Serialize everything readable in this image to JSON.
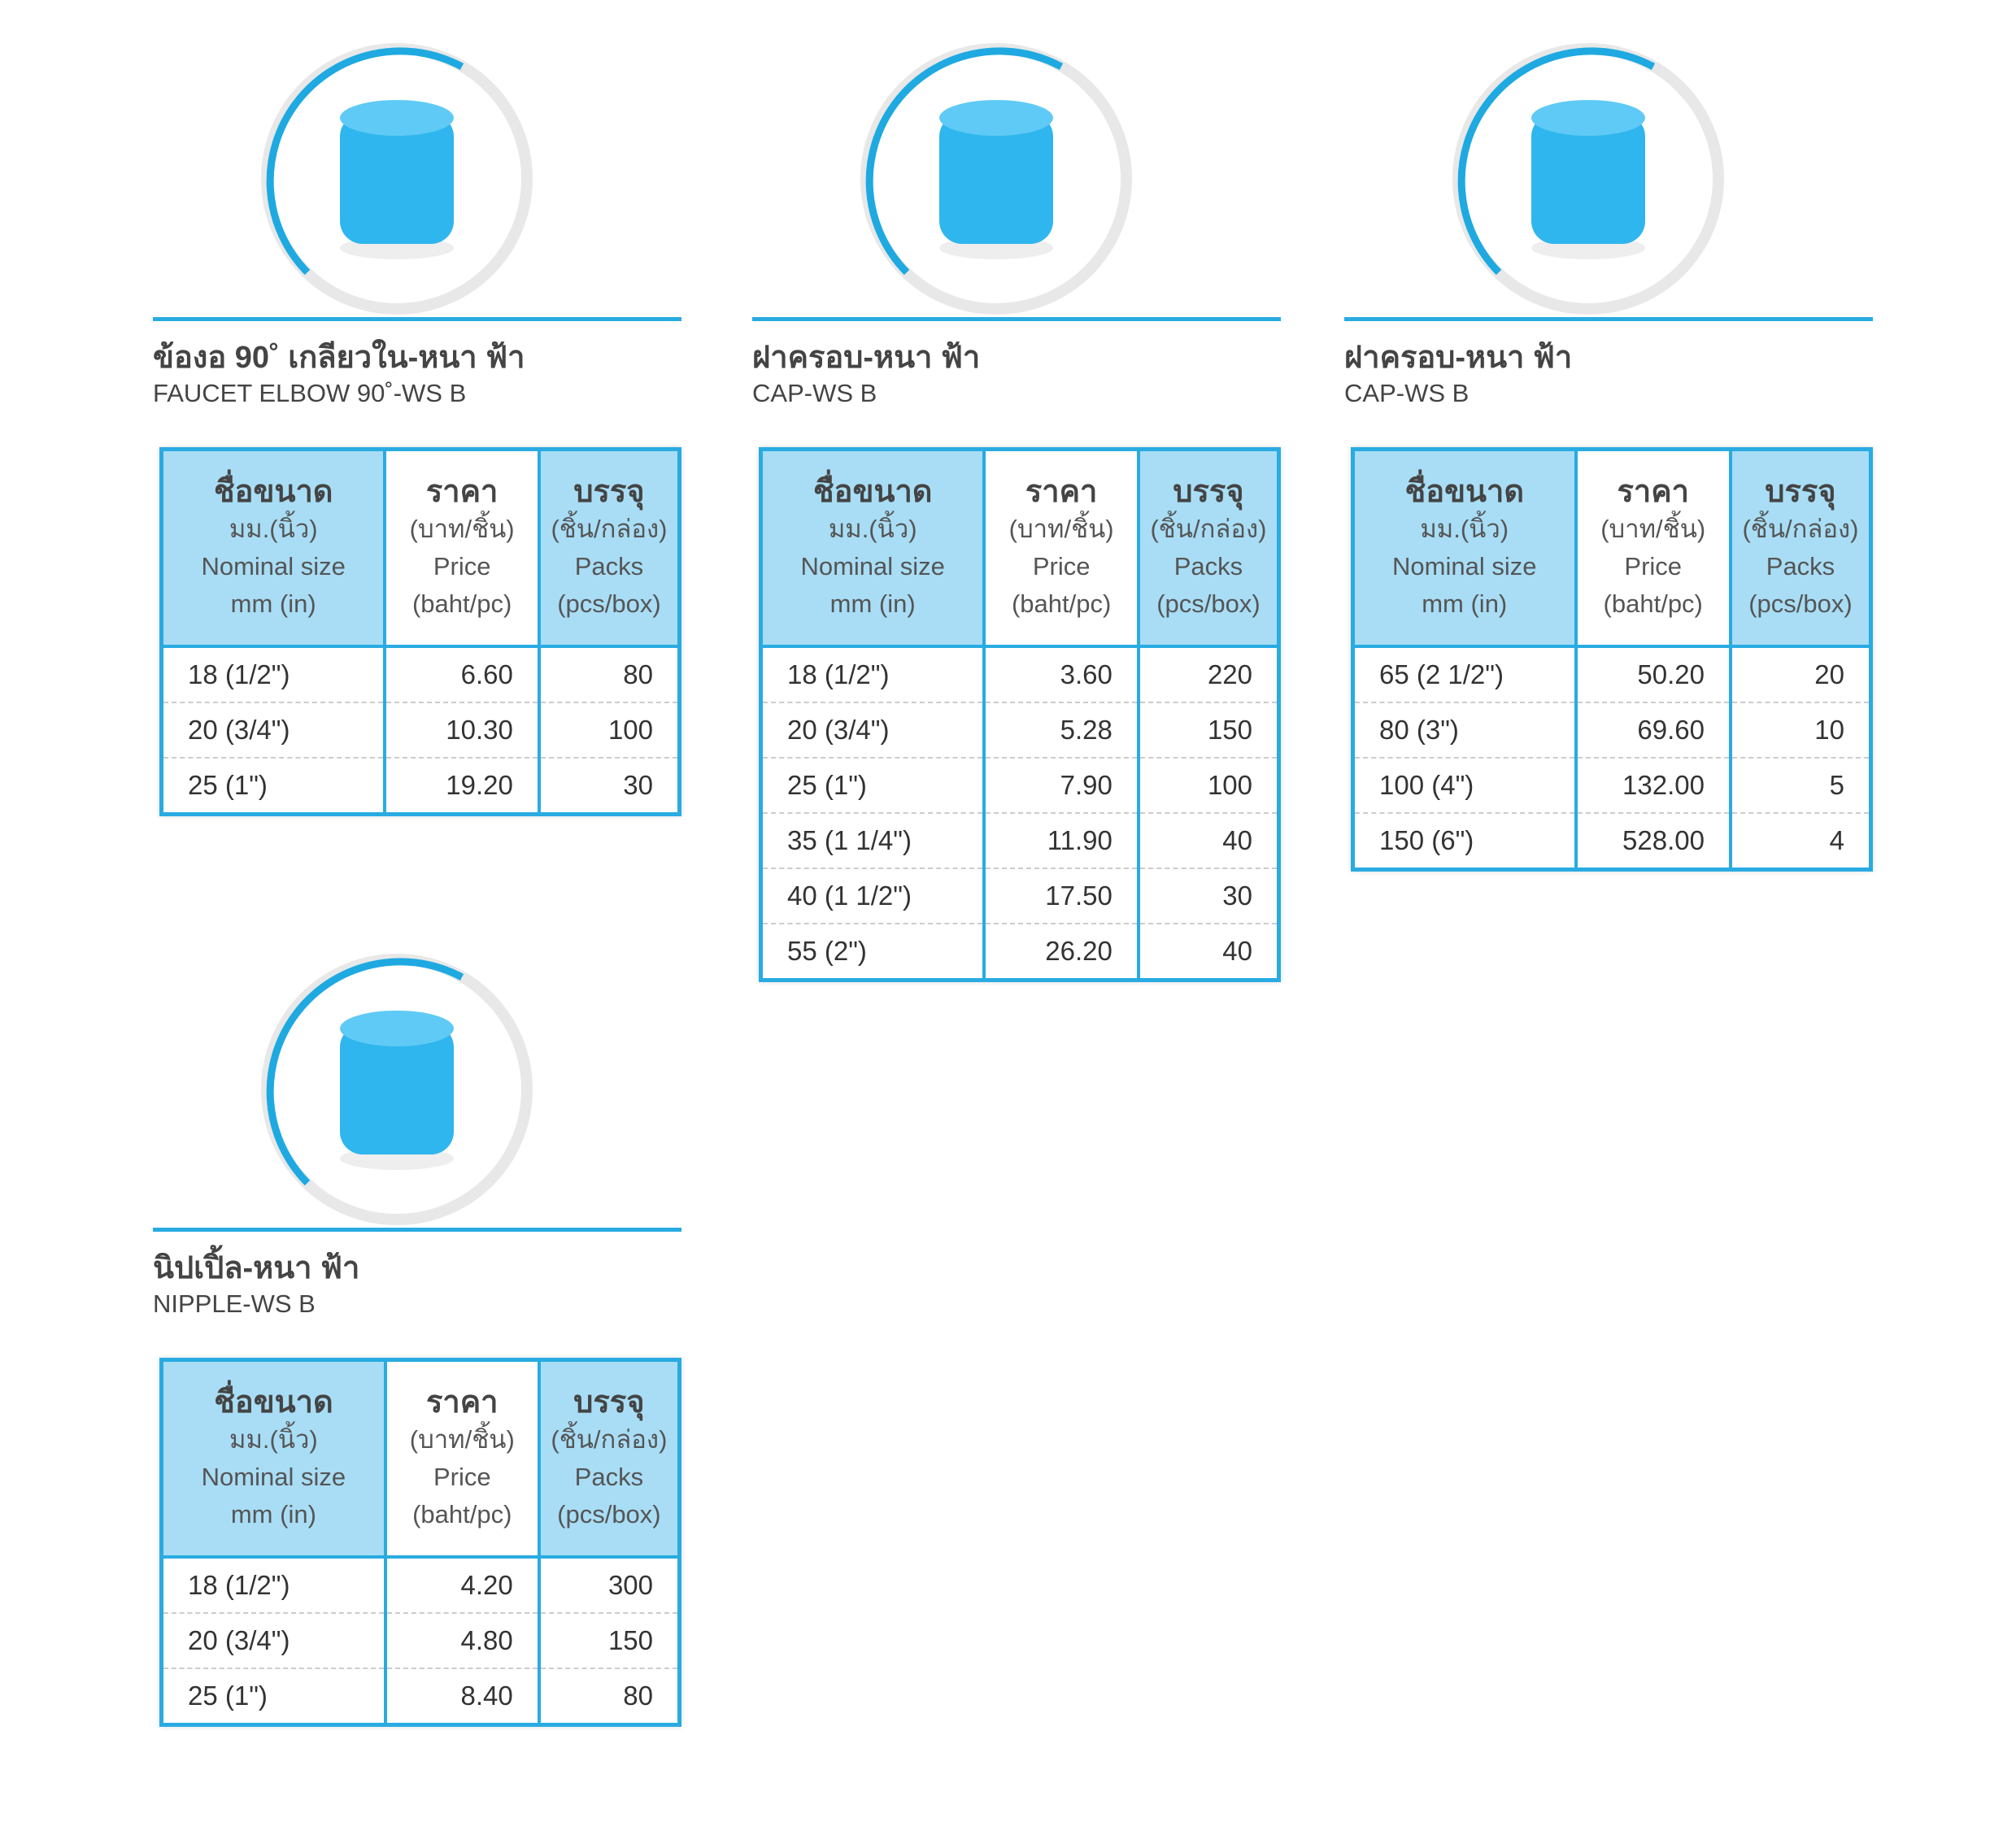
{
  "table_header": [
    {
      "title": "ชื่อขนาด",
      "lines": [
        "มม.(นิ้ว)",
        "Nominal size",
        "mm (in)"
      ]
    },
    {
      "title": "ราคา",
      "lines": [
        "(บาท/ชิ้น)",
        "Price",
        "(baht/pc)"
      ]
    },
    {
      "title": "บรรจุ",
      "lines": [
        "(ชิ้น/กล่อง)",
        "Packs",
        "(pcs/box)"
      ]
    }
  ],
  "products": [
    {
      "title_th": "ข้องอ 90˚ เกลียวใน-หนา ฟ้า",
      "title_en": "FAUCET ELBOW 90˚-WS B",
      "rows": [
        [
          "18 (1/2\")",
          "6.60",
          80
        ],
        [
          "20 (3/4\")",
          "10.30",
          100
        ],
        [
          "25 (1\")",
          "19.20",
          30
        ]
      ]
    },
    {
      "title_th": "ฝาครอบ-หนา ฟ้า",
      "title_en": "CAP-WS B",
      "rows": [
        [
          "18 (1/2\")",
          "3.60",
          220
        ],
        [
          "20 (3/4\")",
          "5.28",
          150
        ],
        [
          "25 (1\")",
          "7.90",
          100
        ],
        [
          "35 (1 1/4\")",
          "11.90",
          40
        ],
        [
          "40 (1 1/2\")",
          "17.50",
          30
        ],
        [
          "55 (2\")",
          "26.20",
          40
        ]
      ]
    },
    {
      "title_th": "ฝาครอบ-หนา ฟ้า",
      "title_en": "CAP-WS B",
      "rows": [
        [
          "65 (2 1/2\")",
          "50.20",
          20
        ],
        [
          "80 (3\")",
          "69.60",
          10
        ],
        [
          "100 (4\")",
          "132.00",
          5
        ],
        [
          "150 (6\")",
          "528.00",
          4
        ]
      ]
    },
    {
      "title_th": "นิปเปิ้ล-หนา ฟ้า",
      "title_en": "NIPPLE-WS B",
      "rows": [
        [
          "18 (1/2\")",
          "4.20",
          300
        ],
        [
          "20 (3/4\")",
          "4.80",
          150
        ],
        [
          "25 (1\")",
          "8.40",
          80
        ]
      ]
    }
  ]
}
